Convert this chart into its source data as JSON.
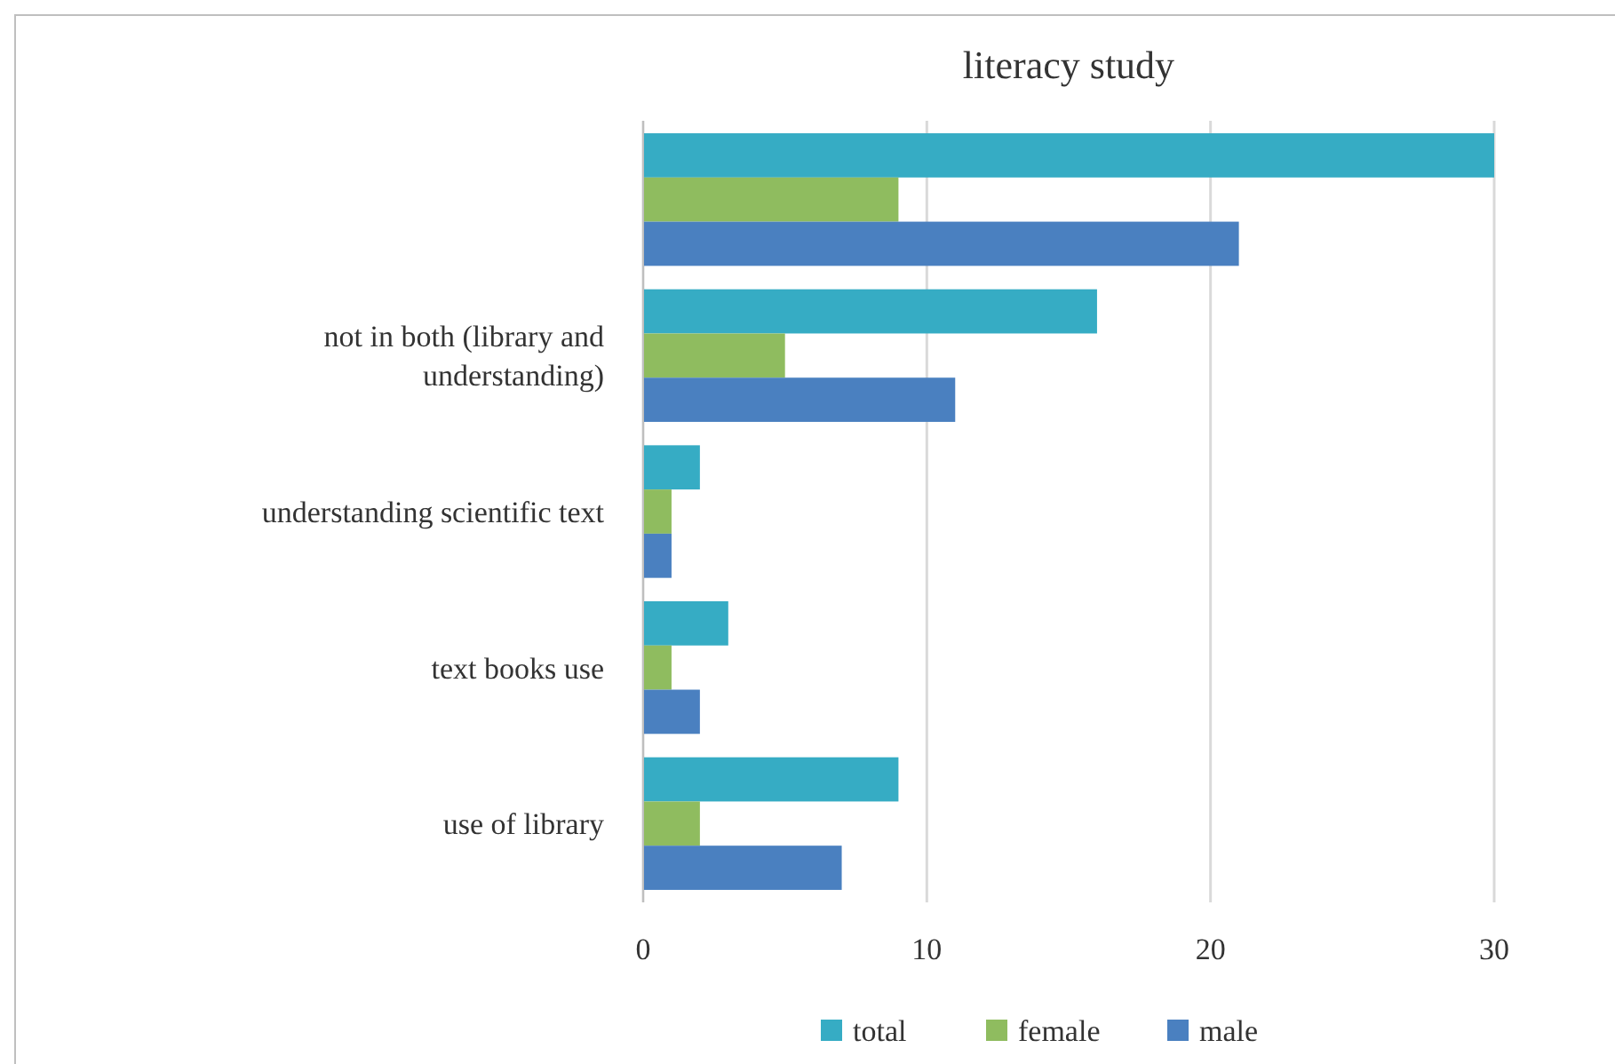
{
  "chart_data": {
    "type": "bar",
    "orientation": "horizontal",
    "title": "literacy study",
    "categories": [
      null,
      "not in both (library and understanding)",
      "understanding scientific text",
      "text books use",
      "use of library"
    ],
    "series": [
      {
        "name": "total",
        "color": "#36acc4",
        "values": [
          30,
          16,
          2,
          3,
          9
        ]
      },
      {
        "name": "female",
        "color": "#8fbc5f",
        "values": [
          9,
          5,
          1,
          1,
          2
        ]
      },
      {
        "name": "male",
        "color": "#4a80c0",
        "values": [
          21,
          11,
          1,
          2,
          7
        ]
      }
    ],
    "xlim": [
      0,
      30
    ],
    "xticks": [
      0,
      10,
      20,
      30
    ],
    "grid": "x",
    "legend": "bottom"
  }
}
